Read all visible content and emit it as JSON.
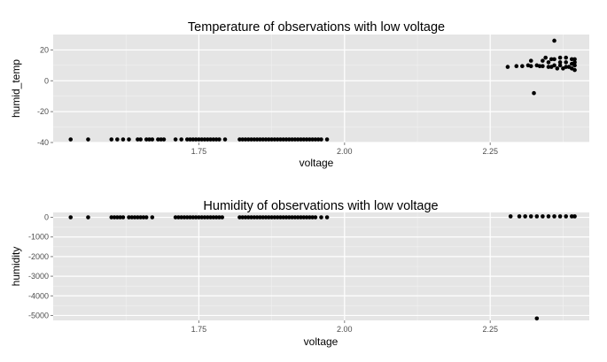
{
  "chart_data": [
    {
      "type": "scatter",
      "title": "Temperature of observations with low voltage",
      "xlabel": "voltage",
      "ylabel": "humid_temp",
      "xlim": [
        1.5,
        2.42
      ],
      "ylim": [
        -40,
        30
      ],
      "xticks": [
        1.75,
        2.0,
        2.25
      ],
      "xtick_labels": [
        "1.75",
        "2.00",
        "2.25"
      ],
      "yticks": [
        -40,
        -20,
        0,
        20
      ],
      "ytick_labels": [
        "-40",
        "-20",
        "0",
        "20"
      ],
      "grid": true,
      "legend": "none",
      "colors": {
        "panel_bg": "#e5e5e5",
        "grid": "#ffffff",
        "point": "#000000"
      },
      "x": [
        1.53,
        1.56,
        1.6,
        1.61,
        1.62,
        1.63,
        1.645,
        1.65,
        1.66,
        1.665,
        1.67,
        1.68,
        1.685,
        1.69,
        1.71,
        1.72,
        1.73,
        1.735,
        1.74,
        1.745,
        1.75,
        1.755,
        1.76,
        1.765,
        1.77,
        1.775,
        1.78,
        1.785,
        1.795,
        1.82,
        1.825,
        1.83,
        1.835,
        1.84,
        1.845,
        1.85,
        1.855,
        1.86,
        1.865,
        1.87,
        1.875,
        1.88,
        1.885,
        1.89,
        1.895,
        1.9,
        1.905,
        1.91,
        1.915,
        1.92,
        1.925,
        1.93,
        1.935,
        1.94,
        1.945,
        1.95,
        1.955,
        1.96,
        1.97,
        2.28,
        2.295,
        2.305,
        2.315,
        2.32,
        2.32,
        2.325,
        2.33,
        2.335,
        2.34,
        2.34,
        2.345,
        2.35,
        2.35,
        2.355,
        2.355,
        2.36,
        2.36,
        2.36,
        2.365,
        2.37,
        2.37,
        2.37,
        2.375,
        2.38,
        2.38,
        2.38,
        2.385,
        2.39,
        2.39,
        2.39,
        2.395,
        2.395,
        2.395,
        2.395
      ],
      "y": [
        -38,
        -38,
        -38,
        -38,
        -38,
        -38,
        -38,
        -38,
        -38,
        -38,
        -38,
        -38,
        -38,
        -38,
        -38,
        -38,
        -38,
        -38,
        -38,
        -38,
        -38,
        -38,
        -38,
        -38,
        -38,
        -38,
        -38,
        -38,
        -38,
        -38,
        -38,
        -38,
        -38,
        -38,
        -38,
        -38,
        -38,
        -38,
        -38,
        -38,
        -38,
        -38,
        -38,
        -38,
        -38,
        -38,
        -38,
        -38,
        -38,
        -38,
        -38,
        -38,
        -38,
        -38,
        -38,
        -38,
        -38,
        -38,
        -38,
        9,
        9.5,
        9.5,
        10,
        13,
        9.5,
        -8,
        10,
        9.5,
        13,
        9.5,
        15,
        9,
        12,
        9,
        14,
        10,
        14,
        26,
        8,
        10,
        12,
        15,
        8,
        9,
        12,
        15,
        9,
        8,
        11,
        14,
        7,
        10,
        12,
        14
      ]
    },
    {
      "type": "scatter",
      "title": "Humidity of observations with low voltage",
      "xlabel": "voltage",
      "ylabel": "humidity",
      "xlim": [
        1.5,
        2.42
      ],
      "ylim": [
        -5250,
        250
      ],
      "xticks": [
        1.75,
        2.0,
        2.25
      ],
      "xtick_labels": [
        "1.75",
        "2.00",
        "2.25"
      ],
      "yticks": [
        -5000,
        -4000,
        -3000,
        -2000,
        -1000,
        0
      ],
      "ytick_labels": [
        "-5000",
        "-4000",
        "-3000",
        "-2000",
        "-1000",
        "0"
      ],
      "grid": true,
      "legend": "none",
      "colors": {
        "panel_bg": "#e5e5e5",
        "grid": "#ffffff",
        "point": "#000000"
      },
      "x": [
        1.53,
        1.56,
        1.6,
        1.605,
        1.61,
        1.615,
        1.62,
        1.63,
        1.635,
        1.64,
        1.645,
        1.65,
        1.655,
        1.66,
        1.67,
        1.71,
        1.715,
        1.72,
        1.725,
        1.73,
        1.735,
        1.74,
        1.745,
        1.75,
        1.755,
        1.76,
        1.765,
        1.77,
        1.775,
        1.78,
        1.785,
        1.79,
        1.82,
        1.825,
        1.83,
        1.835,
        1.84,
        1.845,
        1.85,
        1.855,
        1.86,
        1.865,
        1.87,
        1.875,
        1.88,
        1.885,
        1.89,
        1.895,
        1.9,
        1.905,
        1.91,
        1.915,
        1.92,
        1.925,
        1.93,
        1.935,
        1.94,
        1.945,
        1.95,
        1.96,
        1.97,
        2.285,
        2.3,
        2.31,
        2.32,
        2.33,
        2.33,
        2.34,
        2.35,
        2.36,
        2.37,
        2.38,
        2.39,
        2.395
      ],
      "y": [
        0,
        0,
        0,
        0,
        0,
        0,
        0,
        0,
        0,
        0,
        0,
        0,
        0,
        0,
        0,
        0,
        0,
        0,
        0,
        0,
        0,
        0,
        0,
        0,
        0,
        0,
        0,
        0,
        0,
        0,
        0,
        0,
        0,
        0,
        0,
        0,
        0,
        0,
        0,
        0,
        0,
        0,
        0,
        0,
        0,
        0,
        0,
        0,
        0,
        0,
        0,
        0,
        0,
        0,
        0,
        0,
        0,
        0,
        0,
        0,
        0,
        50,
        50,
        50,
        50,
        50,
        -5150,
        50,
        50,
        50,
        50,
        50,
        50,
        50
      ]
    }
  ]
}
